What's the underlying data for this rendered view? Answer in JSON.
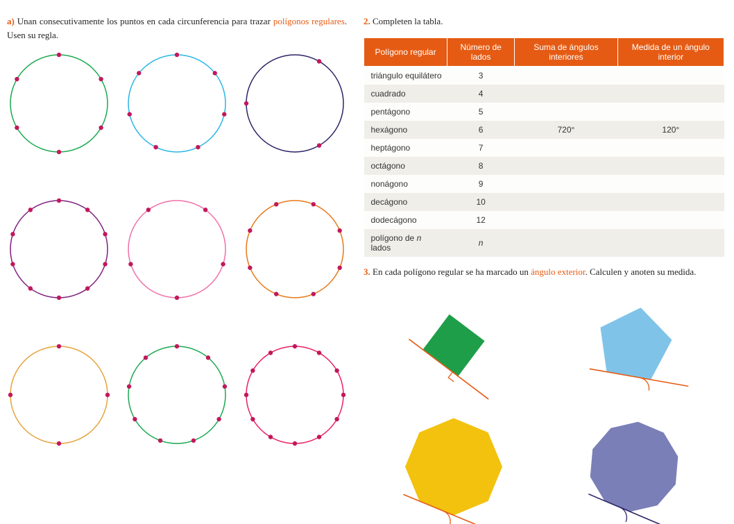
{
  "colors": {
    "accent": "#e55b13",
    "dot": "#c2185b",
    "table_header_bg": "#e55b13",
    "table_header_fg": "#ffffff",
    "row_even_bg": "#efeee9",
    "row_odd_bg": "#fdfdfb"
  },
  "left": {
    "item_label": "a)",
    "text_before": "Unan consecutivamente los puntos en cada circunferencia para trazar ",
    "keyterm": "polígonos regulares",
    "text_after": ". Usen su regla.",
    "circles": [
      {
        "stroke": "#1aa84f",
        "n": 6,
        "start_deg": 90
      },
      {
        "stroke": "#29b6e6",
        "n": 7,
        "start_deg": 90
      },
      {
        "stroke": "#2a2366",
        "n": 3,
        "start_deg": 60
      },
      {
        "stroke": "#7e1f7e",
        "n": 10,
        "start_deg": 90
      },
      {
        "stroke": "#ef6fa8",
        "n": 5,
        "start_deg": 270
      },
      {
        "stroke": "#e67817",
        "n": 8,
        "start_deg": 22.5
      },
      {
        "stroke": "#e6a23c",
        "n": 4,
        "start_deg": 0
      },
      {
        "stroke": "#1aa84f",
        "n": 9,
        "start_deg": 90
      },
      {
        "stroke": "#e91e63",
        "n": 12,
        "start_deg": 90
      }
    ],
    "circle_style": {
      "r": 70,
      "stroke_width": 1.5,
      "dot_r": 3.2
    }
  },
  "right": {
    "q2_num": "2.",
    "q2_text": "Completen la tabla.",
    "table": {
      "headers": [
        "Polígono regular",
        "Número de lados",
        "Suma de ángulos interiores",
        "Medida de un ángulo interior"
      ],
      "rows": [
        {
          "name": "triángulo equilátero",
          "n": "3",
          "sum": "",
          "one": ""
        },
        {
          "name": "cuadrado",
          "n": "4",
          "sum": "",
          "one": ""
        },
        {
          "name": "pentágono",
          "n": "5",
          "sum": "",
          "one": ""
        },
        {
          "name": "hexágono",
          "n": "6",
          "sum": "720°",
          "one": "120°"
        },
        {
          "name": "heptágono",
          "n": "7",
          "sum": "",
          "one": ""
        },
        {
          "name": "octágono",
          "n": "8",
          "sum": "",
          "one": ""
        },
        {
          "name": "nonágono",
          "n": "9",
          "sum": "",
          "one": ""
        },
        {
          "name": "decágono",
          "n": "10",
          "sum": "",
          "one": ""
        },
        {
          "name": "dodecágono",
          "n": "12",
          "sum": "",
          "one": ""
        },
        {
          "name": "polígono de n lados",
          "n": "n",
          "sum": "",
          "one": "",
          "italic_n": true
        }
      ]
    },
    "q3_num": "3.",
    "q3_before": "En cada polígono regular se ha marcado un ",
    "q3_keyterm": "ángulo exterior",
    "q3_after": ". Calculen y anoten su medida.",
    "shapes": [
      {
        "type": "square",
        "sides": 4,
        "fill": "#1f9e49",
        "rot_deg": -8,
        "line_color": "#e55b13",
        "angle_marker": "square"
      },
      {
        "type": "pentagon",
        "sides": 5,
        "fill": "#7fc4e8",
        "rot_deg": 10,
        "line_color": "#e55b13",
        "angle_marker": "arc"
      },
      {
        "type": "octagon",
        "sides": 8,
        "fill": "#f2c20f",
        "rot_deg": 0,
        "line_color": "#e55b13",
        "angle_marker": "arc"
      },
      {
        "type": "decagon",
        "sides": 10,
        "fill": "#7a7fb8",
        "rot_deg": 5,
        "line_color": "#2a2366",
        "angle_marker": "arc"
      }
    ]
  }
}
